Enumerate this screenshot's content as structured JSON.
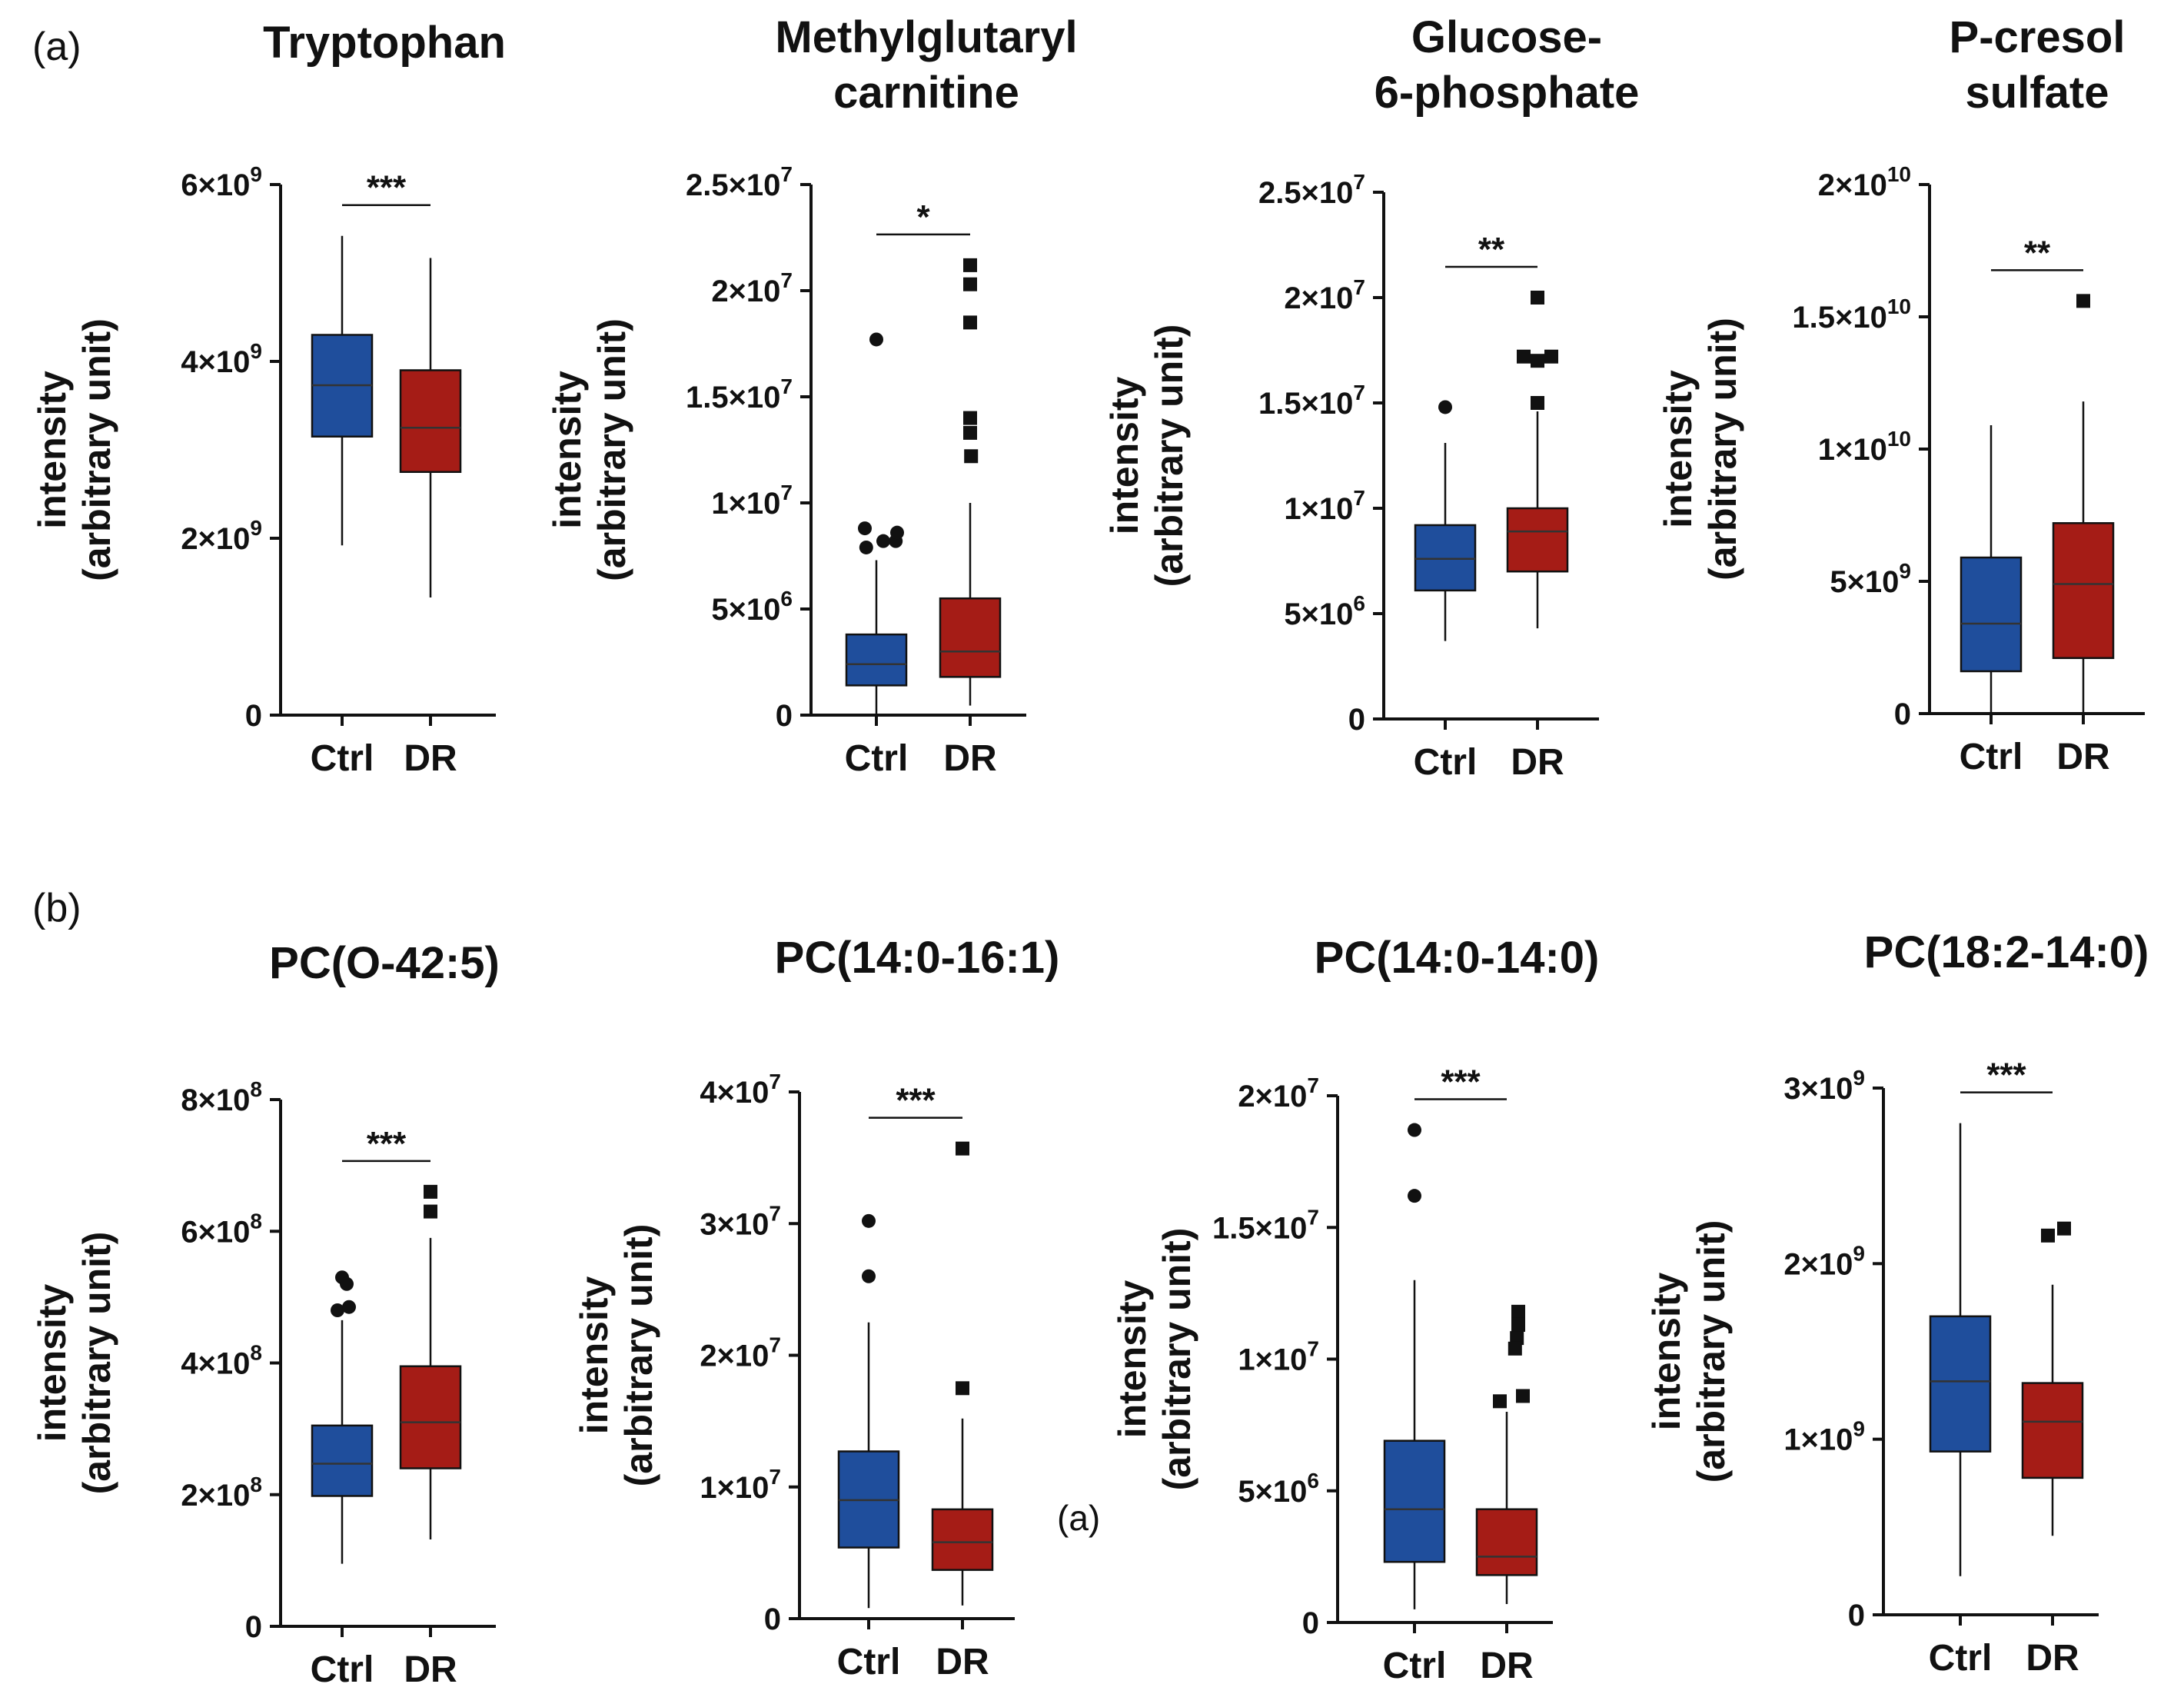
{
  "panel_labels": [
    "(a)",
    "(b)"
  ],
  "stray_label": "(a)",
  "colors": {
    "ctrl": "#1f4e9c",
    "dr": "#a51c16",
    "axis": "#111111"
  },
  "chart_data": [
    {
      "type": "box",
      "title": [
        "Tryptophan"
      ],
      "ylabel": [
        "intensity",
        "(arbitrary unit)"
      ],
      "categories": [
        "Ctrl",
        "DR"
      ],
      "ylim": [
        0,
        6000000000.0
      ],
      "yticks": [
        {
          "v": 0,
          "m": "0",
          "e": ""
        },
        {
          "v": 2000000000.0,
          "m": "2×10",
          "e": "9"
        },
        {
          "v": 4000000000.0,
          "m": "4×10",
          "e": "9"
        },
        {
          "v": 6000000000.0,
          "m": "6×10",
          "e": "9"
        }
      ],
      "significance": "***",
      "boxes": [
        {
          "name": "Ctrl",
          "min": 1920000000.0,
          "q1": 3150000000.0,
          "median": 3730000000.0,
          "q3": 4300000000.0,
          "max": 5420000000.0,
          "outliers": []
        },
        {
          "name": "DR",
          "min": 1330000000.0,
          "q1": 2750000000.0,
          "median": 3250000000.0,
          "q3": 3900000000.0,
          "max": 5170000000.0,
          "outliers": []
        }
      ]
    },
    {
      "type": "box",
      "title": [
        "Methylglutaryl",
        "carnitine"
      ],
      "ylabel": [
        "intensity",
        "(arbitrary unit)"
      ],
      "categories": [
        "Ctrl",
        "DR"
      ],
      "ylim": [
        0,
        25000000.0
      ],
      "yticks": [
        {
          "v": 0,
          "m": "0",
          "e": ""
        },
        {
          "v": 5000000.0,
          "m": "5×10",
          "e": "6"
        },
        {
          "v": 10000000.0,
          "m": "1×10",
          "e": "7"
        },
        {
          "v": 15000000.0,
          "m": "1.5×10",
          "e": "7"
        },
        {
          "v": 20000000.0,
          "m": "2×10",
          "e": "7"
        },
        {
          "v": 25000000.0,
          "m": "2.5×10",
          "e": "7"
        }
      ],
      "significance": "*",
      "boxes": [
        {
          "name": "Ctrl",
          "min": 0,
          "q1": 1400000.0,
          "median": 2400000.0,
          "q3": 3800000.0,
          "max": 7300000.0,
          "outliers": [
            [
              0,
              17700000.0
            ],
            [
              -0.25,
              8800000.0
            ],
            [
              -0.22,
              7900000.0
            ],
            [
              0.15,
              8200000.0
            ],
            [
              0.42,
              8200000.0
            ],
            [
              0.45,
              8600000.0
            ]
          ]
        },
        {
          "name": "DR",
          "min": 450000.0,
          "q1": 1800000.0,
          "median": 3000000.0,
          "q3": 5500000.0,
          "max": 10000000.0,
          "outliers": [
            [
              0,
              21200000.0
            ],
            [
              0,
              20300000.0
            ],
            [
              0,
              18500000.0
            ],
            [
              0,
              14000000.0
            ],
            [
              0,
              13300000.0
            ],
            [
              0.02,
              12200000.0
            ]
          ]
        }
      ]
    },
    {
      "type": "box",
      "title": [
        "Glucose-",
        "6-phosphate"
      ],
      "ylabel": [
        "intensity",
        "(arbitrary unit)"
      ],
      "categories": [
        "Ctrl",
        "DR"
      ],
      "ylim": [
        0,
        25000000.0
      ],
      "yticks": [
        {
          "v": 0,
          "m": "0",
          "e": ""
        },
        {
          "v": 5000000.0,
          "m": "5×10",
          "e": "6"
        },
        {
          "v": 10000000.0,
          "m": "1×10",
          "e": "7"
        },
        {
          "v": 15000000.0,
          "m": "1.5×10",
          "e": "7"
        },
        {
          "v": 20000000.0,
          "m": "2×10",
          "e": "7"
        },
        {
          "v": 25000000.0,
          "m": "2.5×10",
          "e": "7"
        }
      ],
      "significance": "**",
      "boxes": [
        {
          "name": "Ctrl",
          "min": 3700000.0,
          "q1": 6100000.0,
          "median": 7600000.0,
          "q3": 9200000.0,
          "max": 13100000.0,
          "outliers": [
            [
              0,
              14800000.0
            ]
          ]
        },
        {
          "name": "DR",
          "min": 4300000.0,
          "q1": 7000000.0,
          "median": 8900000.0,
          "q3": 10000000.0,
          "max": 14600000.0,
          "outliers": [
            [
              0,
              20000000.0
            ],
            [
              -0.3,
              17200000.0
            ],
            [
              0,
              17000000.0
            ],
            [
              0.3,
              17200000.0
            ],
            [
              0,
              15000000.0
            ]
          ]
        }
      ]
    },
    {
      "type": "box",
      "title": [
        "P-cresol",
        "sulfate"
      ],
      "ylabel": [
        "intensity",
        "(arbitrary unit)"
      ],
      "categories": [
        "Ctrl",
        "DR"
      ],
      "ylim": [
        0,
        20000000000.0
      ],
      "yticks": [
        {
          "v": 0,
          "m": "0",
          "e": ""
        },
        {
          "v": 5000000000.0,
          "m": "5×10",
          "e": "9"
        },
        {
          "v": 10000000000.0,
          "m": "1×10",
          "e": "10"
        },
        {
          "v": 15000000000.0,
          "m": "1.5×10",
          "e": "10"
        },
        {
          "v": 20000000000.0,
          "m": "2×10",
          "e": "10"
        }
      ],
      "significance": "**",
      "boxes": [
        {
          "name": "Ctrl",
          "min": 0,
          "q1": 1600000000.0,
          "median": 3400000000.0,
          "q3": 5900000000.0,
          "max": 10900000000.0,
          "outliers": []
        },
        {
          "name": "DR",
          "min": 0,
          "q1": 2100000000.0,
          "median": 4900000000.0,
          "q3": 7200000000.0,
          "max": 11800000000.0,
          "outliers": [
            [
              0,
              15600000000.0
            ]
          ]
        }
      ]
    },
    {
      "type": "box",
      "title": [
        "PC(O-42:5)"
      ],
      "ylabel": [
        "intensity",
        "(arbitrary unit)"
      ],
      "categories": [
        "Ctrl",
        "DR"
      ],
      "ylim": [
        0,
        800000000.0
      ],
      "yticks": [
        {
          "v": 0,
          "m": "0",
          "e": ""
        },
        {
          "v": 200000000.0,
          "m": "2×10",
          "e": "8"
        },
        {
          "v": 400000000.0,
          "m": "4×10",
          "e": "8"
        },
        {
          "v": 600000000.0,
          "m": "6×10",
          "e": "8"
        },
        {
          "v": 800000000.0,
          "m": "8×10",
          "e": "8"
        }
      ],
      "significance": "***",
      "boxes": [
        {
          "name": "Ctrl",
          "min": 95000000.0,
          "q1": 198000000.0,
          "median": 247000000.0,
          "q3": 305000000.0,
          "max": 465000000.0,
          "outliers": [
            [
              0,
              530000000.0
            ],
            [
              0.1,
              520000000.0
            ],
            [
              -0.1,
              480000000.0
            ],
            [
              0.15,
              485000000.0
            ]
          ]
        },
        {
          "name": "DR",
          "min": 132000000.0,
          "q1": 240000000.0,
          "median": 310000000.0,
          "q3": 395000000.0,
          "max": 590000000.0,
          "outliers": [
            [
              0,
              660000000.0
            ],
            [
              0,
              630000000.0
            ]
          ]
        }
      ]
    },
    {
      "type": "box",
      "title": [
        "PC(14:0-16:1)"
      ],
      "ylabel": [
        "intensity",
        "(arbitrary unit)"
      ],
      "categories": [
        "Ctrl",
        "DR"
      ],
      "ylim": [
        0,
        40000000.0
      ],
      "yticks": [
        {
          "v": 0,
          "m": "0",
          "e": ""
        },
        {
          "v": 10000000.0,
          "m": "1×10",
          "e": "7"
        },
        {
          "v": 20000000.0,
          "m": "2×10",
          "e": "7"
        },
        {
          "v": 30000000.0,
          "m": "3×10",
          "e": "7"
        },
        {
          "v": 40000000.0,
          "m": "4×10",
          "e": "7"
        }
      ],
      "significance": "***",
      "boxes": [
        {
          "name": "Ctrl",
          "min": 800000.0,
          "q1": 5400000.0,
          "median": 9000000.0,
          "q3": 12700000.0,
          "max": 22500000.0,
          "outliers": [
            [
              0,
              30200000.0
            ],
            [
              0,
              26000000.0
            ]
          ]
        },
        {
          "name": "DR",
          "min": 1000000.0,
          "q1": 3700000.0,
          "median": 5800000.0,
          "q3": 8300000.0,
          "max": 15200000.0,
          "outliers": [
            [
              0,
              35700000.0
            ],
            [
              0,
              17500000.0
            ]
          ]
        }
      ]
    },
    {
      "type": "box",
      "title": [
        "PC(14:0-14:0)"
      ],
      "ylabel": [
        "intensity",
        "(arbitrary unit)"
      ],
      "categories": [
        "Ctrl",
        "DR"
      ],
      "ylim": [
        0,
        20000000.0
      ],
      "yticks": [
        {
          "v": 0,
          "m": "0",
          "e": ""
        },
        {
          "v": 5000000.0,
          "m": "5×10",
          "e": "6"
        },
        {
          "v": 10000000.0,
          "m": "1×10",
          "e": "7"
        },
        {
          "v": 15000000.0,
          "m": "1.5×10",
          "e": "7"
        },
        {
          "v": 20000000.0,
          "m": "2×10",
          "e": "7"
        }
      ],
      "significance": "***",
      "boxes": [
        {
          "name": "Ctrl",
          "min": 500000.0,
          "q1": 2300000.0,
          "median": 4300000.0,
          "q3": 6900000.0,
          "max": 13000000.0,
          "outliers": [
            [
              0,
              18700000.0
            ],
            [
              0,
              16200000.0
            ]
          ]
        },
        {
          "name": "DR",
          "min": 700000.0,
          "q1": 1800000.0,
          "median": 2500000.0,
          "q3": 4300000.0,
          "max": 8000000.0,
          "outliers": [
            [
              0.25,
              11800000.0
            ],
            [
              0.25,
              11300000.0
            ],
            [
              0.22,
              10800000.0
            ],
            [
              0.18,
              10400000.0
            ],
            [
              -0.15,
              8400000.0
            ],
            [
              0.35,
              8600000.0
            ]
          ]
        }
      ]
    },
    {
      "type": "box",
      "title": [
        "PC(18:2-14:0)"
      ],
      "ylabel": [
        "intensity",
        "(arbitrary unit)"
      ],
      "categories": [
        "Ctrl",
        "DR"
      ],
      "ylim": [
        0,
        3000000000.0
      ],
      "yticks": [
        {
          "v": 0,
          "m": "0",
          "e": ""
        },
        {
          "v": 1000000000.0,
          "m": "1×10",
          "e": "9"
        },
        {
          "v": 2000000000.0,
          "m": "2×10",
          "e": "9"
        },
        {
          "v": 3000000000.0,
          "m": "3×10",
          "e": "9"
        }
      ],
      "significance": "***",
      "boxes": [
        {
          "name": "Ctrl",
          "min": 220000000.0,
          "q1": 930000000.0,
          "median": 1330000000.0,
          "q3": 1700000000.0,
          "max": 2800000000.0,
          "outliers": []
        },
        {
          "name": "DR",
          "min": 450000000.0,
          "q1": 780000000.0,
          "median": 1100000000.0,
          "q3": 1320000000.0,
          "max": 1880000000.0,
          "outliers": [
            [
              -0.1,
              2160000000.0
            ],
            [
              0.25,
              2200000000.0
            ]
          ]
        }
      ]
    }
  ]
}
